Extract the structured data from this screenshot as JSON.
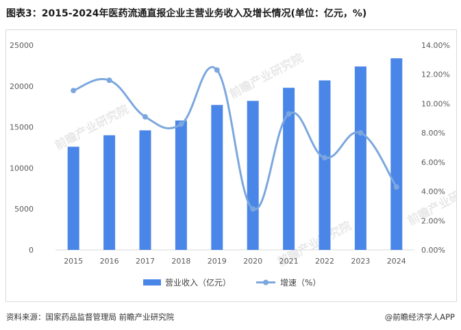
{
  "title": "图表3：2015-2024年医药流通直报企业主营业务收入及增长情况(单位：亿元，%)",
  "source": "资料来源：国家药品监督管理局 前瞻产业研究院",
  "credit": "@前瞻经济学人APP",
  "watermark": "前瞻产业研究院",
  "colors": {
    "bar": "#4a86e8",
    "line": "#7ba7de",
    "grid": "#d9d9d9"
  },
  "chart_data": {
    "type": "bar",
    "categories": [
      "2015",
      "2016",
      "2017",
      "2018",
      "2019",
      "2020",
      "2021",
      "2022",
      "2023",
      "2024"
    ],
    "series": [
      {
        "name": "营业收入（亿元）",
        "type": "bar",
        "axis": "left",
        "values": [
          12600,
          14000,
          14600,
          15800,
          17700,
          18200,
          19800,
          20700,
          22400,
          23400
        ]
      },
      {
        "name": "增速（%）",
        "type": "line",
        "axis": "right",
        "values": [
          10.9,
          11.6,
          9.1,
          8.6,
          12.3,
          2.8,
          9.3,
          6.3,
          8.0,
          4.3
        ]
      }
    ],
    "y_left": {
      "min": 0,
      "max": 25000,
      "ticks": [
        "0",
        "5000",
        "10000",
        "15000",
        "20000",
        "25000"
      ]
    },
    "y_right": {
      "min": 0,
      "max": 14,
      "ticks": [
        "0.00%",
        "2.00%",
        "4.00%",
        "6.00%",
        "8.00%",
        "10.00%",
        "12.00%",
        "14.00%"
      ]
    },
    "grid": false,
    "legend": "bottom"
  }
}
